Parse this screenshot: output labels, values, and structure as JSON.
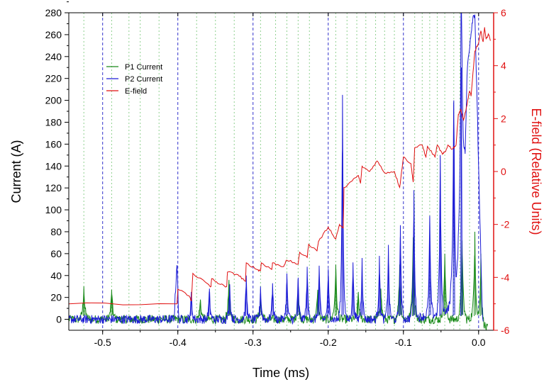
{
  "chart_data": {
    "type": "line",
    "xlabel": "Time (ms)",
    "ylabel": "Current (A)",
    "y2label": "E-field (Relative Units)",
    "xlim": [
      -0.545,
      0.02
    ],
    "ylim": [
      -10,
      280
    ],
    "y2lim": [
      -6,
      6
    ],
    "x_ticks": [
      -0.5,
      -0.4,
      -0.3,
      -0.2,
      -0.1,
      0.0
    ],
    "x_tick_labels": [
      "-0.5",
      "-0.4",
      "-0.3",
      "-0.2",
      "-0.1",
      "0.0"
    ],
    "y_ticks": [
      0,
      20,
      40,
      60,
      80,
      100,
      120,
      140,
      160,
      180,
      200,
      220,
      240,
      260,
      280
    ],
    "y_tick_labels": [
      "0",
      "20",
      "40",
      "60",
      "80",
      "100",
      "120",
      "140",
      "160",
      "180",
      "200",
      "220",
      "240",
      "260",
      "280"
    ],
    "y2_ticks": [
      -6,
      -4,
      -2,
      0,
      2,
      4,
      6
    ],
    "y2_tick_labels": [
      "-6",
      "-4",
      "-2",
      "0",
      "2",
      "4",
      "6"
    ],
    "blue_dashed_markers": [
      -0.5,
      -0.4,
      -0.3,
      -0.2,
      -0.1,
      0.0
    ],
    "green_dotted_markers": [
      -0.525,
      -0.488,
      -0.465,
      -0.45,
      -0.425,
      -0.375,
      -0.35,
      -0.325,
      -0.29,
      -0.27,
      -0.255,
      -0.24,
      -0.225,
      -0.19,
      -0.175,
      -0.162,
      -0.15,
      -0.137,
      -0.125,
      -0.112,
      -0.085,
      -0.075,
      -0.065,
      -0.055,
      -0.045,
      -0.033,
      -0.025,
      -0.012
    ],
    "legend_position": "upper-left",
    "grid": false,
    "colors": {
      "p1": "#1a8a1a",
      "p2": "#1c1cd6",
      "efield": "#e01010",
      "blue_marker": "#3333cc",
      "green_marker": "#8fd08f",
      "right_axis": "#e01010"
    },
    "series": [
      {
        "name": "P1 Current",
        "axis": "left",
        "baseline": 0,
        "noise": 4,
        "points": [
          [
            -0.545,
            0
          ],
          [
            -0.01,
            0
          ],
          [
            0.0,
            -5
          ],
          [
            0.01,
            -8
          ]
        ],
        "spikes": [
          [
            -0.525,
            30
          ],
          [
            -0.488,
            27
          ],
          [
            -0.37,
            18
          ],
          [
            -0.332,
            36
          ],
          [
            -0.29,
            21
          ],
          [
            -0.24,
            22
          ],
          [
            -0.214,
            26
          ],
          [
            -0.19,
            50
          ],
          [
            -0.16,
            25
          ],
          [
            -0.13,
            28
          ],
          [
            -0.105,
            50
          ],
          [
            -0.087,
            75
          ],
          [
            -0.045,
            60
          ],
          [
            -0.022,
            72
          ],
          [
            -0.005,
            80
          ],
          [
            0.003,
            60
          ]
        ],
        "spike_width": 0.0015
      },
      {
        "name": "P2 Current",
        "axis": "left",
        "baseline": 0,
        "noise": 4,
        "points": [
          [
            -0.545,
            0
          ],
          [
            -0.405,
            0
          ],
          [
            -0.401,
            54
          ],
          [
            -0.399,
            0
          ],
          [
            -0.18,
            0
          ],
          [
            -0.1,
            0
          ],
          [
            -0.05,
            5
          ],
          [
            -0.04,
            10
          ],
          [
            -0.035,
            30
          ],
          [
            -0.03,
            20
          ],
          [
            -0.028,
            50
          ],
          [
            -0.022,
            140
          ],
          [
            -0.018,
            150
          ],
          [
            -0.015,
            230
          ],
          [
            -0.012,
            250
          ],
          [
            -0.008,
            275
          ],
          [
            -0.005,
            280
          ],
          [
            0.005,
            0
          ]
        ],
        "spikes": [
          [
            -0.382,
            25
          ],
          [
            -0.358,
            28
          ],
          [
            -0.331,
            32
          ],
          [
            -0.309,
            40
          ],
          [
            -0.29,
            30
          ],
          [
            -0.274,
            33
          ],
          [
            -0.255,
            42
          ],
          [
            -0.24,
            38
          ],
          [
            -0.228,
            48
          ],
          [
            -0.212,
            49
          ],
          [
            -0.2,
            46
          ],
          [
            -0.181,
            205
          ],
          [
            -0.167,
            52
          ],
          [
            -0.155,
            56
          ],
          [
            -0.132,
            58
          ],
          [
            -0.12,
            68
          ],
          [
            -0.104,
            86
          ],
          [
            -0.086,
            118
          ],
          [
            -0.065,
            92
          ],
          [
            -0.051,
            150
          ],
          [
            -0.033,
            200
          ],
          [
            -0.023,
            230
          ]
        ],
        "spike_width": 0.0012
      },
      {
        "name": "E-field",
        "axis": "right",
        "points": [
          [
            -0.545,
            -5.0
          ],
          [
            -0.401,
            -5.0
          ],
          [
            -0.4,
            -4.45
          ],
          [
            -0.385,
            -4.7
          ],
          [
            -0.382,
            -4.9
          ],
          [
            -0.38,
            -3.85
          ],
          [
            -0.36,
            -4.25
          ],
          [
            -0.356,
            -4.35
          ],
          [
            -0.355,
            -4.05
          ],
          [
            -0.345,
            -4.25
          ],
          [
            -0.335,
            -4.35
          ],
          [
            -0.334,
            -3.8
          ],
          [
            -0.32,
            -3.9
          ],
          [
            -0.31,
            -4.15
          ],
          [
            -0.309,
            -3.45
          ],
          [
            -0.295,
            -3.7
          ],
          [
            -0.29,
            -3.75
          ],
          [
            -0.289,
            -3.45
          ],
          [
            -0.275,
            -3.7
          ],
          [
            -0.274,
            -3.45
          ],
          [
            -0.26,
            -3.6
          ],
          [
            -0.255,
            -3.35
          ],
          [
            -0.24,
            -3.5
          ],
          [
            -0.238,
            -3.05
          ],
          [
            -0.228,
            -3.25
          ],
          [
            -0.226,
            -2.75
          ],
          [
            -0.215,
            -3.0
          ],
          [
            -0.213,
            -2.65
          ],
          [
            -0.2,
            -2.1
          ],
          [
            -0.19,
            -2.55
          ],
          [
            -0.185,
            -2.0
          ],
          [
            -0.18,
            -2.15
          ],
          [
            -0.179,
            -0.6
          ],
          [
            -0.168,
            -0.35
          ],
          [
            -0.16,
            -0.15
          ],
          [
            -0.157,
            -0.45
          ],
          [
            -0.155,
            0.2
          ],
          [
            -0.145,
            0.0
          ],
          [
            -0.135,
            0.4
          ],
          [
            -0.125,
            -0.05
          ],
          [
            -0.112,
            0.0
          ],
          [
            -0.105,
            -0.6
          ],
          [
            -0.1,
            0.55
          ],
          [
            -0.09,
            0.3
          ],
          [
            -0.087,
            -0.4
          ],
          [
            -0.085,
            0.9
          ],
          [
            -0.075,
            1.0
          ],
          [
            -0.07,
            0.55
          ],
          [
            -0.068,
            0.95
          ],
          [
            -0.058,
            0.55
          ],
          [
            -0.055,
            1.0
          ],
          [
            -0.048,
            0.65
          ],
          [
            -0.044,
            0.75
          ],
          [
            -0.041,
            1.0
          ],
          [
            -0.035,
            0.85
          ],
          [
            -0.03,
            1.0
          ],
          [
            -0.027,
            2.15
          ],
          [
            -0.024,
            2.35
          ],
          [
            -0.02,
            1.95
          ],
          [
            -0.017,
            2.3
          ],
          [
            -0.012,
            3.05
          ],
          [
            -0.01,
            2.85
          ],
          [
            -0.005,
            4.55
          ],
          [
            0.0,
            4.85
          ],
          [
            0.003,
            5.3
          ],
          [
            0.006,
            4.9
          ],
          [
            0.008,
            5.45
          ],
          [
            0.01,
            5.0
          ],
          [
            0.013,
            5.2
          ],
          [
            0.016,
            4.95
          ]
        ]
      }
    ]
  }
}
